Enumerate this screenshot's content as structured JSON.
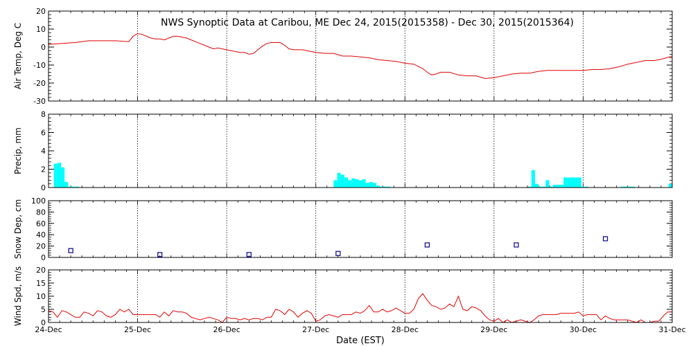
{
  "title": "NWS Synoptic Data at Caribou, ME    Dec 24, 2015(2015358) - Dec 30, 2015(2015364)",
  "xlabel": "Date (EST)",
  "x_ticks": [
    "24-Dec",
    "25-Dec",
    "26-Dec",
    "27-Dec",
    "28-Dec",
    "29-Dec",
    "30-Dec",
    "31-Dec"
  ],
  "colors": {
    "temp": "#e00000",
    "precip": "#00ffff",
    "snow": "#00008b",
    "wind": "#e00000",
    "grid": "#000000"
  },
  "chart_data": [
    {
      "type": "line",
      "ylabel": "Air Temp, Deg C",
      "ylim": [
        -30,
        20
      ],
      "yticks": [
        -30,
        -20,
        -10,
        0,
        10,
        20
      ],
      "x_unit": "days since 24-Dec 00:00",
      "x": [
        0,
        0.15,
        0.3,
        0.45,
        0.6,
        0.75,
        0.9,
        0.95,
        1.0,
        1.05,
        1.1,
        1.15,
        1.2,
        1.25,
        1.3,
        1.35,
        1.4,
        1.45,
        1.5,
        1.55,
        1.6,
        1.65,
        1.7,
        1.75,
        1.8,
        1.85,
        1.9,
        1.95,
        2.0,
        2.05,
        2.1,
        2.15,
        2.2,
        2.25,
        2.3,
        2.35,
        2.4,
        2.45,
        2.5,
        2.55,
        2.6,
        2.65,
        2.7,
        2.75,
        2.8,
        2.85,
        2.9,
        2.95,
        3.0,
        3.1,
        3.2,
        3.3,
        3.4,
        3.5,
        3.6,
        3.7,
        3.8,
        3.9,
        4.0,
        4.1,
        4.2,
        4.25,
        4.3,
        4.35,
        4.4,
        4.5,
        4.6,
        4.7,
        4.8,
        4.9,
        5.0,
        5.1,
        5.2,
        5.3,
        5.4,
        5.5,
        5.6,
        5.7,
        5.8,
        5.9,
        6.0,
        6.1,
        6.2,
        6.3,
        6.4,
        6.5,
        6.6,
        6.7,
        6.8,
        6.9,
        7.0
      ],
      "values": [
        1.5,
        2.0,
        2.5,
        3.5,
        3.5,
        3.5,
        3.0,
        6.0,
        7.5,
        7.0,
        6.0,
        5.0,
        4.5,
        4.5,
        4.0,
        5.0,
        6.0,
        6.0,
        5.5,
        5.0,
        4.0,
        3.0,
        2.0,
        1.0,
        0.0,
        -1.0,
        -0.5,
        -1.0,
        -1.5,
        -2.0,
        -2.5,
        -3.0,
        -3.0,
        -4.0,
        -3.5,
        -1.5,
        0.5,
        2.0,
        2.5,
        2.5,
        2.5,
        1.0,
        -1.0,
        -1.5,
        -1.5,
        -1.5,
        -2.0,
        -2.5,
        -3.0,
        -3.5,
        -3.5,
        -5.0,
        -5.0,
        -5.5,
        -6.0,
        -7.0,
        -7.5,
        -8.0,
        -9.0,
        -9.5,
        -12.0,
        -14.0,
        -15.5,
        -15.0,
        -14.0,
        -14.0,
        -15.5,
        -16.0,
        -16.0,
        -17.5,
        -17.0,
        -16.0,
        -15.0,
        -14.5,
        -14.5,
        -13.5,
        -13.0,
        -13.0,
        -13.0,
        -13.0,
        -13.0,
        -12.5,
        -12.5,
        -12.0,
        -11.0,
        -9.5,
        -8.5,
        -7.5,
        -7.5,
        -6.5,
        -5.0
      ]
    },
    {
      "type": "bar",
      "ylabel": "Precip, mm",
      "ylim": [
        0,
        8
      ],
      "yticks": [
        0,
        2,
        4,
        6,
        8
      ],
      "bar_width_days": 0.04,
      "x_unit": "days since 24-Dec 00:00",
      "x": [
        0.08,
        0.12,
        0.16,
        0.2,
        0.24,
        0.28,
        0.32,
        3.22,
        3.26,
        3.3,
        3.34,
        3.38,
        3.42,
        3.46,
        3.5,
        3.54,
        3.58,
        3.62,
        3.66,
        3.7,
        3.74,
        3.78,
        3.82,
        5.4,
        5.44,
        5.48,
        5.52,
        5.56,
        5.6,
        5.64,
        5.68,
        5.72,
        5.76,
        5.8,
        5.84,
        5.88,
        5.92,
        5.96,
        6.0,
        6.04,
        6.44,
        6.48,
        6.52,
        6.56,
        6.98
      ],
      "values": [
        2.6,
        2.7,
        2.2,
        0.6,
        0.1,
        0.1,
        0.1,
        0.8,
        1.6,
        1.4,
        1.1,
        0.8,
        1.0,
        0.9,
        0.8,
        0.9,
        0.5,
        0.6,
        0.5,
        0.2,
        0.1,
        0.1,
        0.1,
        0.1,
        1.9,
        0.4,
        0.1,
        0.1,
        0.8,
        0.1,
        0.3,
        0.3,
        0.3,
        1.1,
        1.1,
        1.1,
        1.1,
        1.1,
        0.1,
        0.1,
        0.1,
        0.1,
        0.1,
        0.1,
        0.4
      ]
    },
    {
      "type": "scatter",
      "ylabel": "Snow Dep, cm",
      "ylim": [
        0,
        100
      ],
      "yticks": [
        0,
        20,
        40,
        60,
        80,
        100
      ],
      "x_unit": "days since 24-Dec 00:00",
      "x": [
        0.25,
        1.25,
        2.25,
        3.25,
        4.25,
        5.25,
        6.25
      ],
      "values": [
        12,
        5,
        5,
        7,
        22,
        22,
        33
      ]
    },
    {
      "type": "line",
      "ylabel": "Wind Spd, m/s",
      "ylim": [
        0,
        20
      ],
      "yticks": [
        0,
        5,
        10,
        15,
        20
      ],
      "x_unit": "days since 24-Dec 00:00",
      "x": [
        0,
        0.05,
        0.1,
        0.15,
        0.2,
        0.25,
        0.3,
        0.35,
        0.4,
        0.45,
        0.5,
        0.55,
        0.6,
        0.65,
        0.7,
        0.75,
        0.8,
        0.85,
        0.9,
        0.95,
        1.0,
        1.05,
        1.1,
        1.15,
        1.2,
        1.25,
        1.3,
        1.35,
        1.4,
        1.45,
        1.5,
        1.55,
        1.6,
        1.65,
        1.7,
        1.75,
        1.8,
        1.85,
        1.9,
        1.95,
        2.0,
        2.05,
        2.1,
        2.15,
        2.2,
        2.25,
        2.3,
        2.35,
        2.4,
        2.45,
        2.5,
        2.55,
        2.6,
        2.65,
        2.7,
        2.75,
        2.8,
        2.85,
        2.9,
        2.95,
        3.0,
        3.05,
        3.1,
        3.15,
        3.2,
        3.25,
        3.3,
        3.35,
        3.4,
        3.45,
        3.5,
        3.55,
        3.6,
        3.65,
        3.7,
        3.75,
        3.8,
        3.85,
        3.9,
        3.95,
        4.0,
        4.05,
        4.1,
        4.15,
        4.2,
        4.25,
        4.3,
        4.35,
        4.4,
        4.45,
        4.5,
        4.55,
        4.6,
        4.65,
        4.7,
        4.75,
        4.8,
        4.85,
        4.9,
        4.95,
        5.0,
        5.05,
        5.1,
        5.15,
        5.2,
        5.25,
        5.3,
        5.35,
        5.4,
        5.45,
        5.5,
        5.55,
        5.6,
        5.65,
        5.7,
        5.75,
        5.8,
        5.85,
        5.9,
        5.95,
        6.0,
        6.05,
        6.1,
        6.15,
        6.2,
        6.25,
        6.3,
        6.35,
        6.4,
        6.45,
        6.5,
        6.55,
        6.6,
        6.65,
        6.7,
        6.75,
        6.8,
        6.85,
        6.9,
        6.95,
        7.0
      ],
      "values": [
        4.5,
        4.0,
        2.0,
        4.5,
        4.0,
        3.0,
        2.0,
        2.0,
        4.0,
        3.5,
        2.5,
        4.5,
        4.0,
        2.5,
        2.0,
        3.0,
        5.0,
        4.0,
        5.0,
        3.0,
        3.0,
        3.0,
        3.0,
        3.0,
        3.0,
        2.0,
        4.0,
        2.5,
        4.5,
        4.0,
        4.0,
        3.5,
        2.0,
        1.5,
        1.0,
        1.5,
        2.0,
        1.5,
        1.0,
        0.0,
        2.0,
        1.5,
        1.5,
        1.0,
        1.5,
        1.0,
        1.5,
        1.5,
        1.0,
        2.0,
        2.0,
        5.0,
        4.5,
        3.0,
        5.0,
        4.0,
        2.0,
        3.5,
        4.5,
        3.5,
        0.5,
        1.0,
        2.5,
        3.0,
        2.5,
        2.0,
        3.0,
        3.0,
        3.0,
        4.0,
        3.5,
        4.5,
        6.5,
        4.0,
        4.0,
        5.0,
        4.0,
        4.5,
        5.5,
        4.5,
        3.5,
        3.5,
        5.0,
        9.0,
        11.0,
        8.5,
        6.5,
        6.0,
        5.0,
        5.5,
        7.0,
        6.0,
        10.0,
        5.0,
        4.5,
        6.0,
        5.5,
        4.5,
        2.5,
        1.0,
        0.5,
        1.5,
        0.0,
        1.0,
        0.0,
        0.5,
        1.0,
        0.5,
        0.0,
        1.0,
        2.5,
        3.0,
        3.0,
        3.0,
        3.0,
        3.5,
        3.5,
        3.5,
        3.5,
        4.0,
        2.5,
        3.0,
        3.0,
        3.0,
        1.0,
        2.5,
        1.5,
        1.0,
        1.0,
        1.0,
        1.0,
        0.5,
        0.0,
        1.0,
        0.0,
        0.0,
        0.5,
        0.5,
        2.5,
        4.0,
        4.0
      ]
    }
  ]
}
